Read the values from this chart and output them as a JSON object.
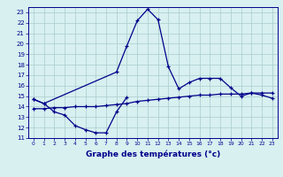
{
  "upper_x": [
    0,
    1,
    8,
    9,
    10,
    11,
    12,
    13,
    14,
    15,
    16,
    17,
    18,
    19,
    20,
    21,
    22,
    23
  ],
  "upper_y": [
    14.7,
    14.3,
    17.3,
    19.8,
    22.2,
    23.3,
    22.3,
    17.8,
    15.7,
    16.3,
    16.7,
    16.7,
    16.7,
    15.8,
    15.0,
    15.3,
    15.1,
    14.8
  ],
  "lower_x": [
    0,
    1,
    2,
    3,
    4,
    5,
    6,
    7,
    8,
    9
  ],
  "lower_y": [
    14.7,
    14.3,
    13.5,
    13.2,
    12.2,
    11.8,
    11.5,
    11.5,
    13.5,
    14.9
  ],
  "mid_x": [
    0,
    1,
    2,
    3,
    4,
    5,
    6,
    7,
    8,
    9,
    10,
    11,
    12,
    13,
    14,
    15,
    16,
    17,
    18,
    19,
    20,
    21,
    22,
    23
  ],
  "mid_y": [
    13.8,
    13.8,
    13.9,
    13.9,
    14.0,
    14.0,
    14.0,
    14.1,
    14.2,
    14.3,
    14.5,
    14.6,
    14.7,
    14.8,
    14.9,
    15.0,
    15.1,
    15.1,
    15.2,
    15.2,
    15.2,
    15.3,
    15.3,
    15.3
  ],
  "xlabel": "Graphe des températures (°c)",
  "ylim": [
    11,
    23.5
  ],
  "xlim": [
    -0.5,
    23.5
  ],
  "yticks": [
    11,
    12,
    13,
    14,
    15,
    16,
    17,
    18,
    19,
    20,
    21,
    22,
    23
  ],
  "xticks": [
    0,
    1,
    2,
    3,
    4,
    5,
    6,
    7,
    8,
    9,
    10,
    11,
    12,
    13,
    14,
    15,
    16,
    17,
    18,
    19,
    20,
    21,
    22,
    23
  ],
  "line_color": "#00008b",
  "bg_color": "#d8f0f0",
  "grid_color": "#aacccc"
}
